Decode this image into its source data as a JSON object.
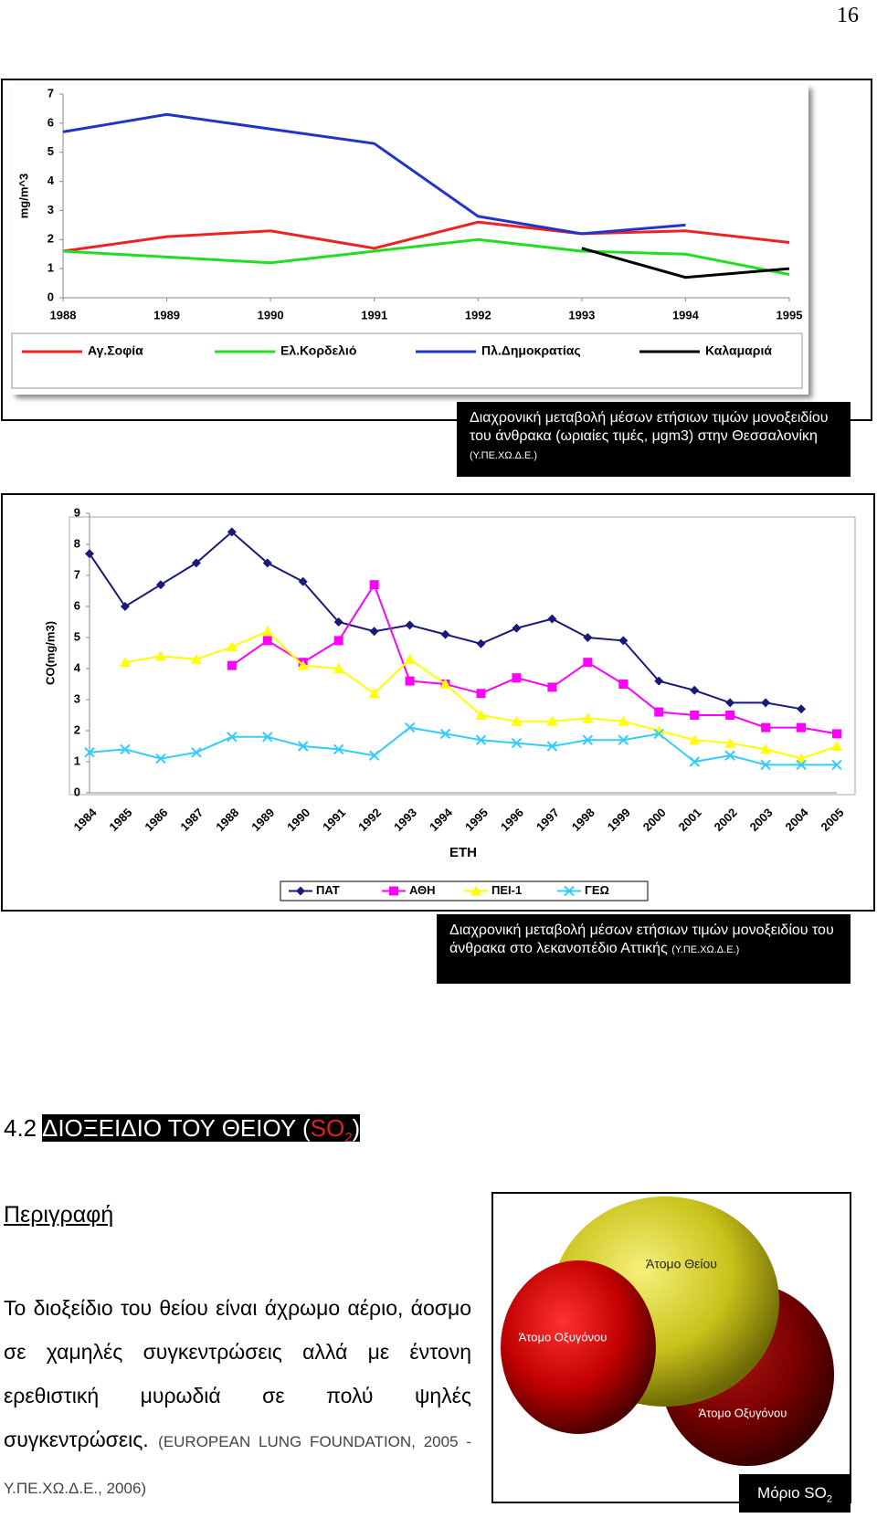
{
  "page_number": "16",
  "chart_data": [
    {
      "type": "line",
      "ylabel": "mg/m^3",
      "x": [
        1988,
        1989,
        1990,
        1991,
        1992,
        1993,
        1994,
        1995
      ],
      "xlim": [
        1988,
        1995
      ],
      "xticks": [
        1988,
        1989,
        1990,
        1991,
        1992,
        1993,
        1994,
        1995
      ],
      "ylim": [
        0,
        7
      ],
      "yticks": [
        0,
        1,
        2,
        3,
        4,
        5,
        6,
        7
      ],
      "grid": false,
      "series": [
        {
          "name": "Αγ.Σοφία",
          "color": "#ee2222",
          "values": [
            1.6,
            2.1,
            2.3,
            1.7,
            2.6,
            2.2,
            2.3,
            1.9
          ]
        },
        {
          "name": "Ελ.Κορδελιό",
          "color": "#22dd22",
          "values": [
            1.6,
            1.4,
            1.2,
            1.6,
            2.0,
            1.6,
            1.5,
            0.8
          ]
        },
        {
          "name": "Πλ.Δημοκρατίας",
          "color": "#2233cc",
          "values": [
            5.7,
            6.3,
            5.8,
            5.3,
            2.8,
            2.2,
            2.5,
            null
          ]
        },
        {
          "name": "Καλαμαριά",
          "color": "#000000",
          "values": [
            null,
            null,
            null,
            null,
            null,
            1.7,
            0.7,
            1.0
          ]
        }
      ]
    },
    {
      "type": "line",
      "ylabel": "CO(mg/m3)",
      "xlabel": "ΕΤΗ",
      "categories": [
        "1984",
        "1985",
        "1986",
        "1987",
        "1988",
        "1989",
        "1990",
        "1991",
        "1992",
        "1993",
        "1994",
        "1995",
        "1996",
        "1997",
        "1998",
        "1999",
        "2000",
        "2001",
        "2002",
        "2003",
        "2004",
        "2005"
      ],
      "ylim": [
        0,
        9
      ],
      "yticks": [
        0,
        1,
        2,
        3,
        4,
        5,
        6,
        7,
        8,
        9
      ],
      "grid": false,
      "series": [
        {
          "name": "ΠΑΤ",
          "color": "#1a1a7a",
          "marker": "diamond",
          "values": [
            7.7,
            6.0,
            6.7,
            7.4,
            8.4,
            7.4,
            6.8,
            5.5,
            5.2,
            5.4,
            5.1,
            4.8,
            5.3,
            5.6,
            5.0,
            4.9,
            3.6,
            3.3,
            2.9,
            2.9,
            2.7,
            null
          ]
        },
        {
          "name": "ΑΘΗ",
          "color": "#ff00ff",
          "marker": "square",
          "values": [
            null,
            null,
            null,
            null,
            4.1,
            4.9,
            4.2,
            4.9,
            6.7,
            3.6,
            3.5,
            3.2,
            3.7,
            3.4,
            4.2,
            3.5,
            2.6,
            2.5,
            2.5,
            2.1,
            2.1,
            1.9
          ]
        },
        {
          "name": "ΠΕΙ-1",
          "color": "#ffff00",
          "marker": "triangle",
          "values": [
            null,
            4.2,
            4.4,
            4.3,
            4.7,
            5.2,
            4.1,
            4.0,
            3.2,
            4.3,
            3.5,
            2.5,
            2.3,
            2.3,
            2.4,
            2.3,
            2.0,
            1.7,
            1.6,
            1.4,
            1.1,
            1.5
          ]
        },
        {
          "name": "ΓΕΩ",
          "color": "#33ccff",
          "marker": "x",
          "values": [
            1.3,
            1.4,
            1.1,
            1.3,
            1.8,
            1.8,
            1.5,
            1.4,
            1.2,
            2.1,
            1.9,
            1.7,
            1.6,
            1.5,
            1.7,
            1.7,
            1.9,
            1.0,
            1.2,
            0.9,
            0.9,
            0.9
          ]
        }
      ]
    }
  ],
  "captions": [
    {
      "text": "Διαχρονική μεταβολή μέσων ετήσιων τιμών μονοξειδίου του άνθρακα (ωριαίες τιμές, μgm3) στην Θεσσαλονίκη",
      "source": "(Υ.ΠΕ.ΧΩ.Δ.Ε.)"
    },
    {
      "text": "Διαχρονική μεταβολή μέσων ετήσιων τιμών μονοξειδίου του άνθρακα στο λεκανοπέδιο Αττικής",
      "source": "(Υ.ΠΕ.ΧΩ.Δ.Ε.)"
    }
  ],
  "section": {
    "number": "4.2",
    "title": "ΔΙΟΞΕΙΔΙΟ ΤΟΥ ΘΕΙΟΥ (",
    "formula": "SO",
    "formula_sub": "2",
    "close": ")"
  },
  "subheading": "Περιγραφή",
  "paragraph": {
    "text": "Το διοξείδιο του θείου είναι άχρωμο αέριο, άοσμο σε χαμηλές συγκεντρώσεις αλλά με έντονη ερεθιστική μυρωδιά σε πολύ ψηλές συγκεντρώσεις.",
    "reference": "(EUROPEAN LUNG FOUNDATION, 2005 - Υ.ΠΕ.ΧΩ.Δ.Ε., 2006)"
  },
  "figure": {
    "sulfur_label": "Άτομο Θείου",
    "oxygen_label_1": "Άτομο Οξυγόνου",
    "oxygen_label_2": "Άτομο Οξυγόνου",
    "caption": "Μόριο SO",
    "caption_sub": "2"
  }
}
